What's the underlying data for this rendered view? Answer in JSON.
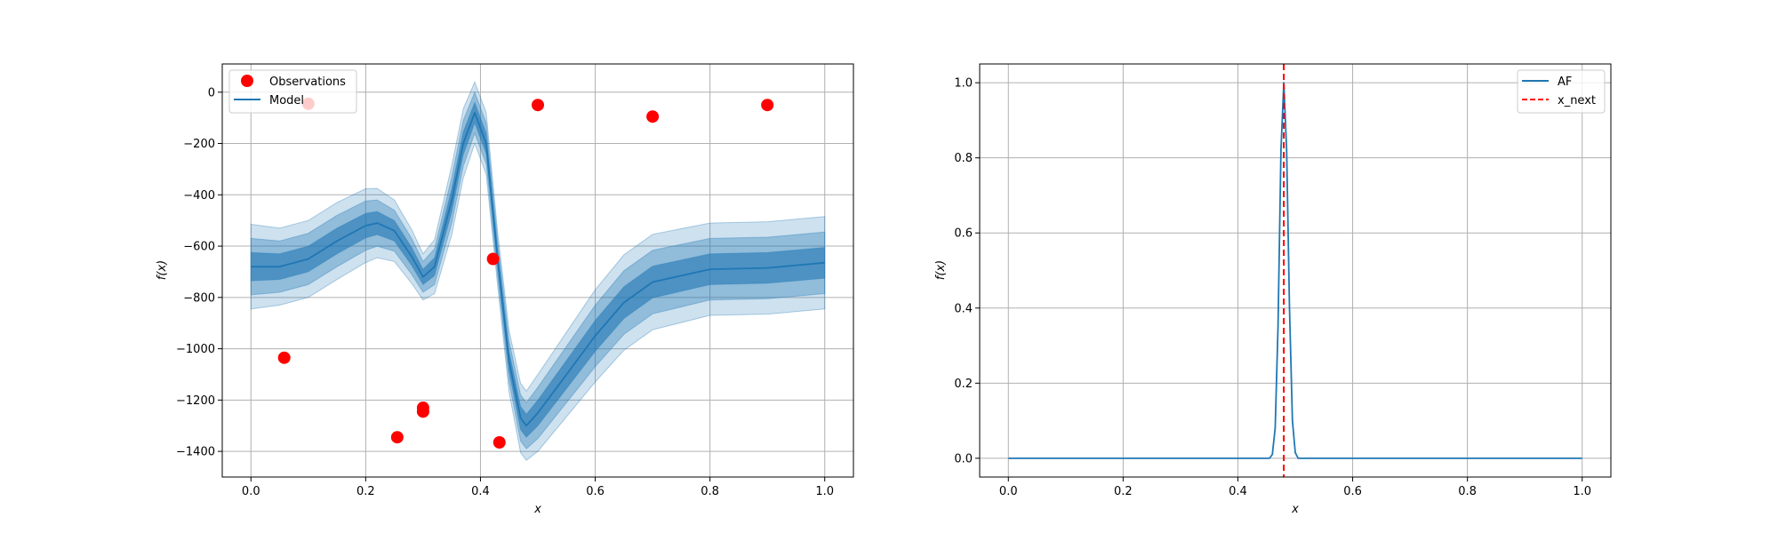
{
  "chart_data": [
    {
      "type": "line",
      "title": "",
      "xlabel": "x",
      "ylabel": "f(x)",
      "xlim": [
        -0.05,
        1.05
      ],
      "ylim": [
        -1500,
        110
      ],
      "grid": true,
      "legend_position": "top-left",
      "x_ticks": [
        0.0,
        0.2,
        0.4,
        0.6,
        0.8,
        1.0
      ],
      "x_tick_labels": [
        "0.0",
        "0.2",
        "0.4",
        "0.6",
        "0.8",
        "1.0"
      ],
      "y_ticks": [
        0,
        -200,
        -400,
        -600,
        -800,
        -1000,
        -1200,
        -1400
      ],
      "y_tick_labels": [
        "0",
        "−200",
        "−400",
        "−600",
        "−800",
        "−1000",
        "−1200",
        "−1400"
      ],
      "legend": [
        "Observations",
        "Model"
      ],
      "colors": {
        "observations": "#ff0000",
        "model": "#1f77b4"
      },
      "observations": {
        "name": "Observations",
        "x": [
          0.058,
          0.1,
          0.255,
          0.3,
          0.3,
          0.422,
          0.433,
          0.5,
          0.7,
          0.9
        ],
        "y": [
          -1035,
          -45,
          -1345,
          -1230,
          -1245,
          -650,
          -1365,
          -50,
          -95,
          -50
        ]
      },
      "model": {
        "name": "Model",
        "x": [
          0.0,
          0.05,
          0.1,
          0.15,
          0.2,
          0.22,
          0.25,
          0.28,
          0.3,
          0.32,
          0.35,
          0.37,
          0.39,
          0.41,
          0.43,
          0.45,
          0.47,
          0.48,
          0.5,
          0.55,
          0.6,
          0.65,
          0.7,
          0.8,
          0.9,
          1.0
        ],
        "mean": [
          -680,
          -680,
          -650,
          -580,
          -520,
          -510,
          -540,
          -640,
          -720,
          -680,
          -420,
          -200,
          -80,
          -200,
          -650,
          -1050,
          -1270,
          -1300,
          -1250,
          -1100,
          -950,
          -820,
          -740,
          -690,
          -685,
          -665
        ],
        "sd": [
          55,
          50,
          50,
          50,
          48,
          45,
          40,
          35,
          30,
          35,
          45,
          45,
          40,
          40,
          35,
          40,
          45,
          45,
          50,
          55,
          60,
          62,
          62,
          60,
          60,
          60
        ]
      }
    },
    {
      "type": "line",
      "title": "",
      "xlabel": "x",
      "ylabel": "f(x)",
      "xlim": [
        -0.05,
        1.05
      ],
      "ylim": [
        -0.05,
        1.05
      ],
      "grid": true,
      "legend_position": "top-right",
      "x_ticks": [
        0.0,
        0.2,
        0.4,
        0.6,
        0.8,
        1.0
      ],
      "x_tick_labels": [
        "0.0",
        "0.2",
        "0.4",
        "0.6",
        "0.8",
        "1.0"
      ],
      "y_ticks": [
        0.0,
        0.2,
        0.4,
        0.6,
        0.8,
        1.0
      ],
      "y_tick_labels": [
        "0.0",
        "0.2",
        "0.4",
        "0.6",
        "0.8",
        "1.0"
      ],
      "legend": [
        "AF",
        "x_next"
      ],
      "colors": {
        "af": "#1f77b4",
        "x_next": "#ff0000"
      },
      "af": {
        "name": "AF",
        "x": [
          0.0,
          0.455,
          0.46,
          0.465,
          0.47,
          0.475,
          0.48,
          0.485,
          0.49,
          0.495,
          0.5,
          0.505,
          1.0
        ],
        "y": [
          0.0,
          0.0,
          0.01,
          0.08,
          0.35,
          0.82,
          1.0,
          0.82,
          0.4,
          0.1,
          0.015,
          0.0,
          0.0
        ]
      },
      "x_next": {
        "name": "x_next",
        "x": 0.48
      }
    }
  ]
}
